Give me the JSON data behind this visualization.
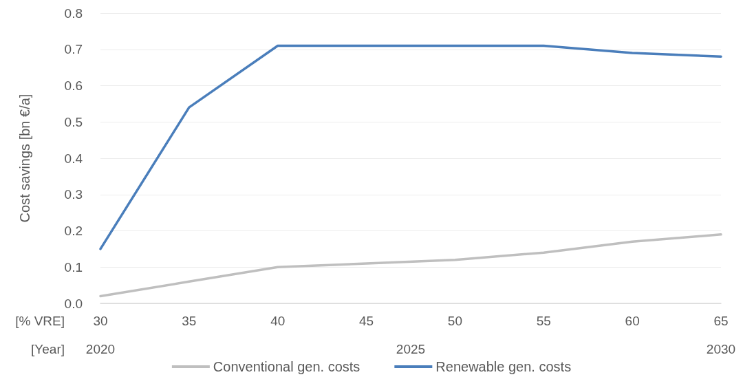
{
  "chart_data": {
    "type": "line",
    "ylabel": "Cost savings [bn €/a]",
    "xlabel": "[% VRE]",
    "x2label": "[Year]",
    "x": [
      30,
      35,
      40,
      45,
      50,
      55,
      60,
      65
    ],
    "series": [
      {
        "name": "Conventional gen. costs",
        "color": "#bfbfbf",
        "values": [
          0.02,
          0.06,
          0.1,
          0.11,
          0.12,
          0.14,
          0.17,
          0.19
        ]
      },
      {
        "name": "Renewable gen. costs",
        "color": "#4a7ebb",
        "values": [
          0.15,
          0.54,
          0.71,
          0.71,
          0.71,
          0.71,
          0.69,
          0.68
        ]
      }
    ],
    "xlim": [
      30,
      65
    ],
    "xticks": [
      30,
      35,
      40,
      45,
      50,
      55,
      60,
      65
    ],
    "x2lim": [
      2020,
      2030
    ],
    "x2ticks": [
      2020,
      2025,
      2030
    ],
    "ylim": [
      0,
      0.8
    ],
    "yticks": [
      {
        "value": 0,
        "label": "0.0"
      },
      0.1,
      0.2,
      0.3,
      0.4,
      0.5,
      0.6,
      0.7,
      0.8
    ],
    "grid": "y",
    "legend": "bottom",
    "marker": "none",
    "line_style": "solid"
  }
}
